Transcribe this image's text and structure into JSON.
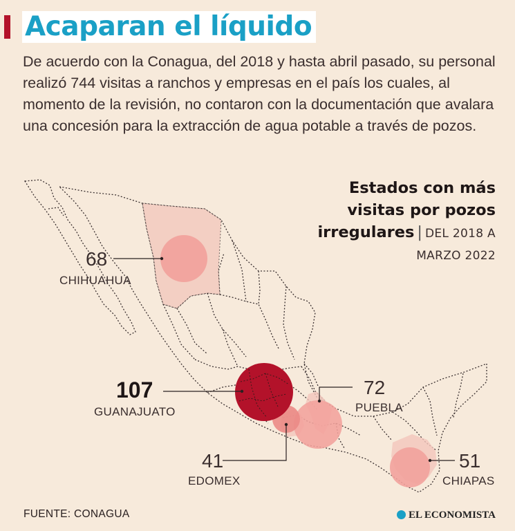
{
  "header": {
    "title": "Acaparan el líquido",
    "intro": "De acuerdo con la Conagua, del 2018 y hasta abril pasado, su personal realizó 744 visitas a ranchos y empresas en el país los cuales, al momento de la revisión, no contaron con la documentación que avalara una concesión para la extracción de agua potable a través de pozos."
  },
  "map_title": {
    "line1": "Estados con más",
    "line2": "visitas por pozos",
    "line3": "irregulares",
    "separator": "|",
    "period1": "DEL 2018 A",
    "period2": "MARZO 2022"
  },
  "states": [
    {
      "name": "CHIHUAHUA",
      "value": "68",
      "color": "#f2a29c"
    },
    {
      "name": "GUANAJUATO",
      "value": "107",
      "color": "#b3122a"
    },
    {
      "name": "PUEBLA",
      "value": "72",
      "color": "#f2a29c"
    },
    {
      "name": "EDOMEX",
      "value": "41",
      "color": "#eb8b86"
    },
    {
      "name": "CHIAPAS",
      "value": "51",
      "color": "#f2a29c"
    }
  ],
  "footer": {
    "source": "FUENTE: CONAGUA",
    "brand": "EL ECONOMISTA",
    "brand_color": "#1aa0c6"
  }
}
